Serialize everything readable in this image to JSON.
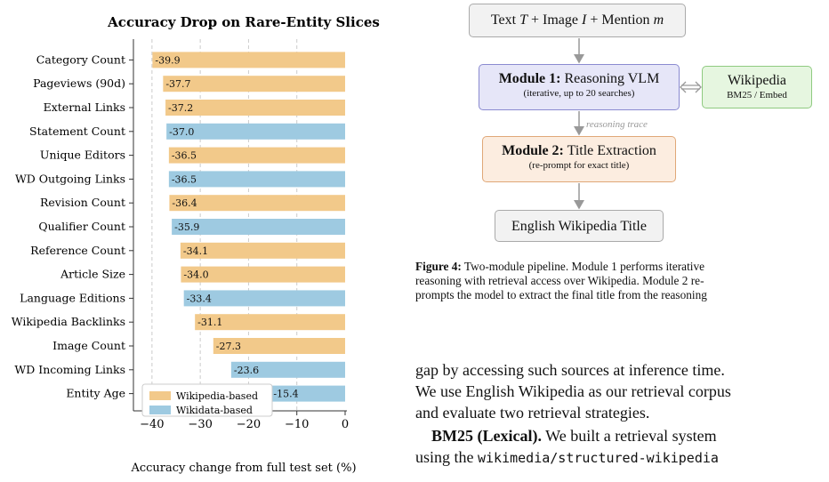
{
  "chart_data": {
    "type": "bar",
    "orientation": "horizontal",
    "title": "Accuracy Drop on Rare-Entity Slices",
    "xlabel": "Accuracy change from full test set (%)",
    "xlim": [
      -42,
      0
    ],
    "xticks": [
      -40,
      -30,
      -20,
      -10,
      0
    ],
    "xtick_labels": [
      "−40",
      "−30",
      "−20",
      "−10",
      "0"
    ],
    "grid": "vertical dashed",
    "legend_position": "lower-left",
    "categories": [
      "Category Count",
      "Pageviews (90d)",
      "External Links",
      "Statement Count",
      "Unique Editors",
      "WD Outgoing Links",
      "Revision Count",
      "Qualifier Count",
      "Reference Count",
      "Article Size",
      "Language Editions",
      "Wikipedia Backlinks",
      "Image Count",
      "WD Incoming Links",
      "Entity Age"
    ],
    "values": [
      -39.9,
      -37.7,
      -37.2,
      -37.0,
      -36.5,
      -36.5,
      -36.4,
      -35.9,
      -34.1,
      -34.0,
      -33.4,
      -31.1,
      -27.3,
      -23.6,
      -15.4
    ],
    "value_labels": [
      "-39.9",
      "-37.7",
      "-37.2",
      "-37.0",
      "-36.5",
      "-36.5",
      "-36.4",
      "-35.9",
      "-34.1",
      "-34.0",
      "-33.4",
      "-31.1",
      "-27.3",
      "-23.6",
      "-15.4"
    ],
    "groups": [
      "wp",
      "wp",
      "wp",
      "wd",
      "wp",
      "wd",
      "wp",
      "wd",
      "wp",
      "wp",
      "wd",
      "wp",
      "wp",
      "wd",
      "wd"
    ],
    "series": [
      {
        "key": "wp",
        "name": "Wikipedia-based",
        "color": "#f2c98a"
      },
      {
        "key": "wd",
        "name": "Wikidata-based",
        "color": "#9ecae1"
      }
    ]
  },
  "diagram": {
    "input_box": {
      "prefix": "Text ",
      "T": "T",
      "mid1": " + Image ",
      "I": "I",
      "mid2": " + Mention ",
      "m": "m"
    },
    "module1": {
      "bold": "Module 1:",
      "title": " Reasoning VLM",
      "sub": "(iterative, up to 20 searches)"
    },
    "wiki": {
      "title": "Wikipedia",
      "sub": "BM25 / Embed"
    },
    "edge_label": "reasoning trace",
    "module2": {
      "bold": "Module 2:",
      "title": " Title Extraction",
      "sub": "(re-prompt for exact title)"
    },
    "output_box": "English Wikipedia Title"
  },
  "caption": {
    "label": "Figure 4:",
    "line1": " Two-module pipeline. Module 1 performs iterative",
    "line2": "reasoning with retrieval access over Wikipedia. Module 2 re-",
    "line3": "prompts the model to extract the final title from the reasoning"
  },
  "body": {
    "line1": "gap by accessing such sources at inference time.",
    "line2": "We use English Wikipedia as our retrieval corpus",
    "line3": "and evaluate two retrieval strategies.",
    "bm25_head": "BM25 (Lexical).",
    "line4_rest": " We built a retrieval system",
    "line5_a": "using the ",
    "line5_code": "wikimedia/structured-wikipedia"
  }
}
